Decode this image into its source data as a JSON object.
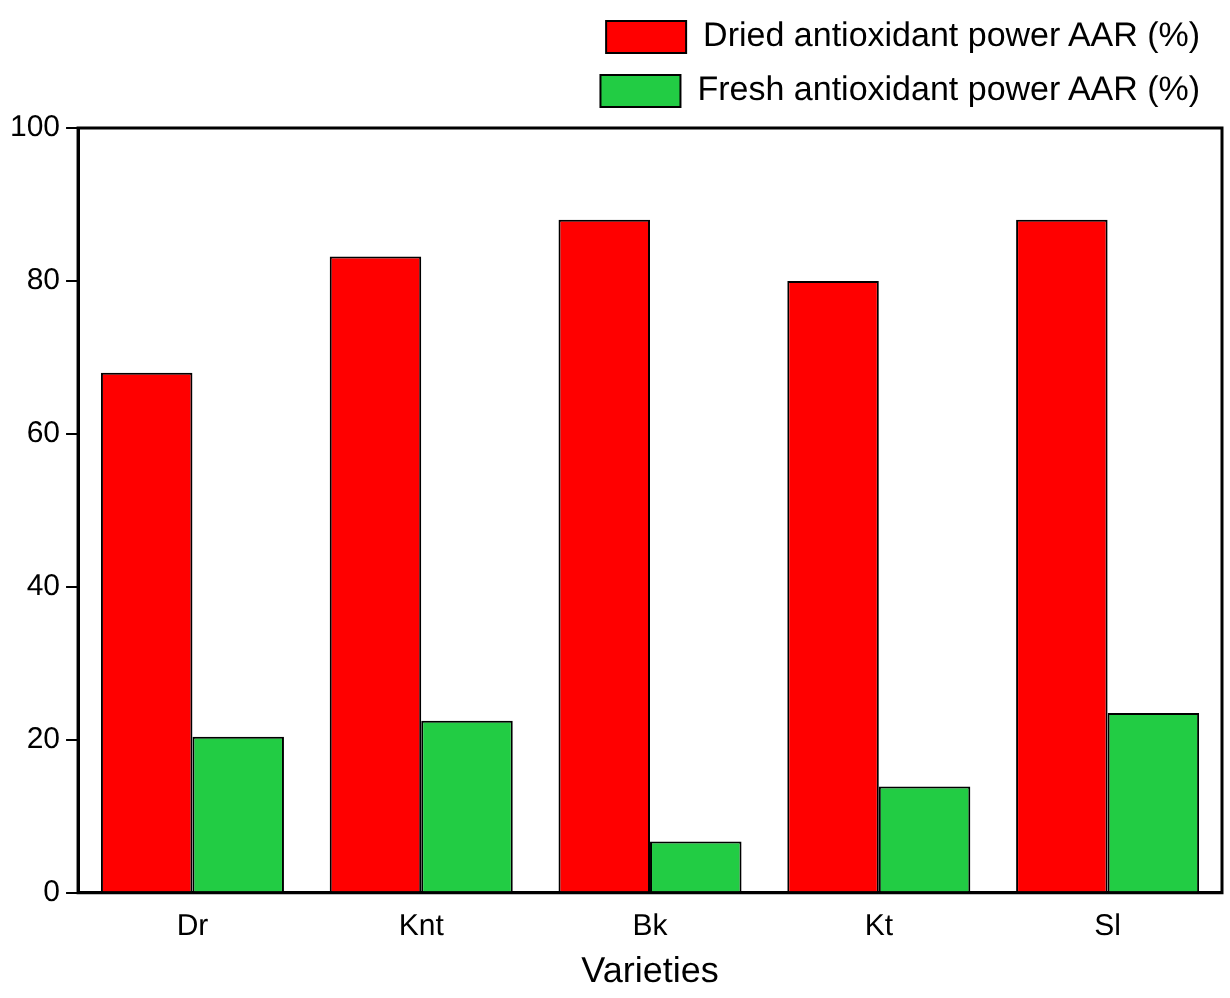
{
  "chart_data": {
    "type": "bar",
    "xlabel": "Varieties",
    "categories": [
      "Dr",
      "Knt",
      "Bk",
      "Kt",
      "Sl"
    ],
    "series": [
      {
        "name": "Dried antioxidant power AAR (%)",
        "color": "#ff0000",
        "values": [
          68,
          83.2,
          88,
          80,
          88
        ]
      },
      {
        "name": "Fresh antioxidant power AAR (%)",
        "color": "#22cc44",
        "values": [
          20.4,
          22.5,
          6.7,
          13.9,
          23.5
        ]
      }
    ],
    "ylim": [
      0,
      100
    ],
    "yticks": [
      0,
      20,
      40,
      60,
      80,
      100
    ],
    "grid": false,
    "legend": "top right"
  }
}
